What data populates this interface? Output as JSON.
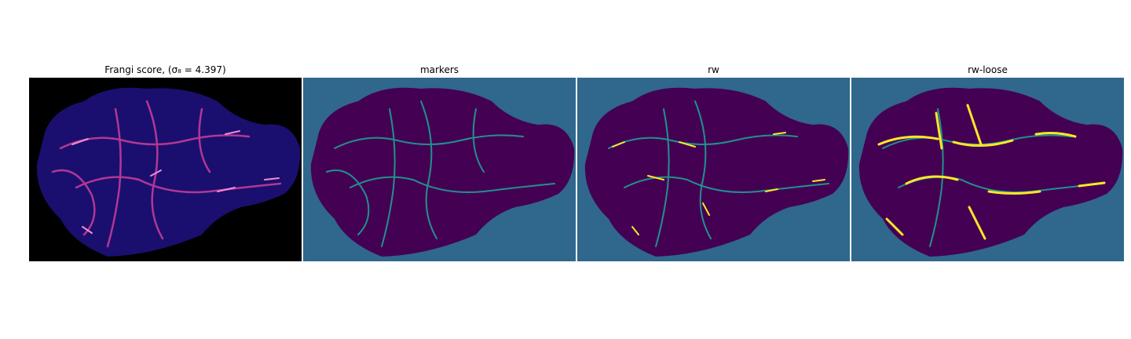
{
  "panels": [
    {
      "title": "Frangi score, (σ₈ = 4.397)",
      "colormap": "magma",
      "background": "#000000",
      "tissue": "#1a0f6e",
      "vessel": "#c23c9a",
      "highlight": "#f28bd6"
    },
    {
      "title": "markers",
      "colormap": "viridis",
      "background": "#30678c",
      "tissue": "#440154",
      "vessel": "#21918c"
    },
    {
      "title": "rw",
      "colormap": "viridis",
      "background": "#30678c",
      "tissue": "#440154",
      "vessel": "#21918c",
      "highlight": "#fde725"
    },
    {
      "title": "rw-loose",
      "colormap": "viridis",
      "background": "#30678c",
      "tissue": "#440154",
      "vessel": "#21918c",
      "highlight": "#fde725"
    }
  ]
}
